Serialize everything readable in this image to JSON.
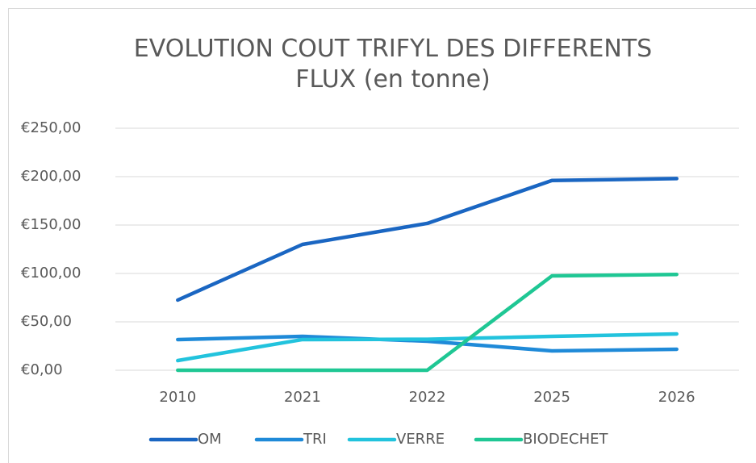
{
  "chart_data": {
    "type": "line",
    "title": "EVOLUTION COUT TRIFYL DES DIFFERENTS FLUX (en tonne)",
    "categories": [
      "2010",
      "2021",
      "2022",
      "2025",
      "2026"
    ],
    "series": [
      {
        "name": "OM",
        "color": "#1a66c2",
        "values": [
          72.5,
          130,
          151.7,
          196,
          198
        ]
      },
      {
        "name": "TRI",
        "color": "#1f8ad8",
        "values": [
          31.7,
          35,
          30,
          20,
          21.7
        ]
      },
      {
        "name": "VERRE",
        "color": "#22c3dd",
        "values": [
          10,
          31.7,
          32,
          35,
          37.5
        ]
      },
      {
        "name": "BIODECHET",
        "color": "#1fc794",
        "values": [
          0,
          0,
          0,
          97.5,
          99
        ]
      }
    ],
    "ylim": [
      0,
      250
    ],
    "yticks": [
      {
        "value": 0,
        "label": "€0,00"
      },
      {
        "value": 50,
        "label": "€50,00"
      },
      {
        "value": 100,
        "label": "€100,00"
      },
      {
        "value": 150,
        "label": "€150,00"
      },
      {
        "value": 200,
        "label": "€200,00"
      },
      {
        "value": 250,
        "label": "€250,00"
      }
    ],
    "grid": true,
    "legend": "bottom"
  }
}
